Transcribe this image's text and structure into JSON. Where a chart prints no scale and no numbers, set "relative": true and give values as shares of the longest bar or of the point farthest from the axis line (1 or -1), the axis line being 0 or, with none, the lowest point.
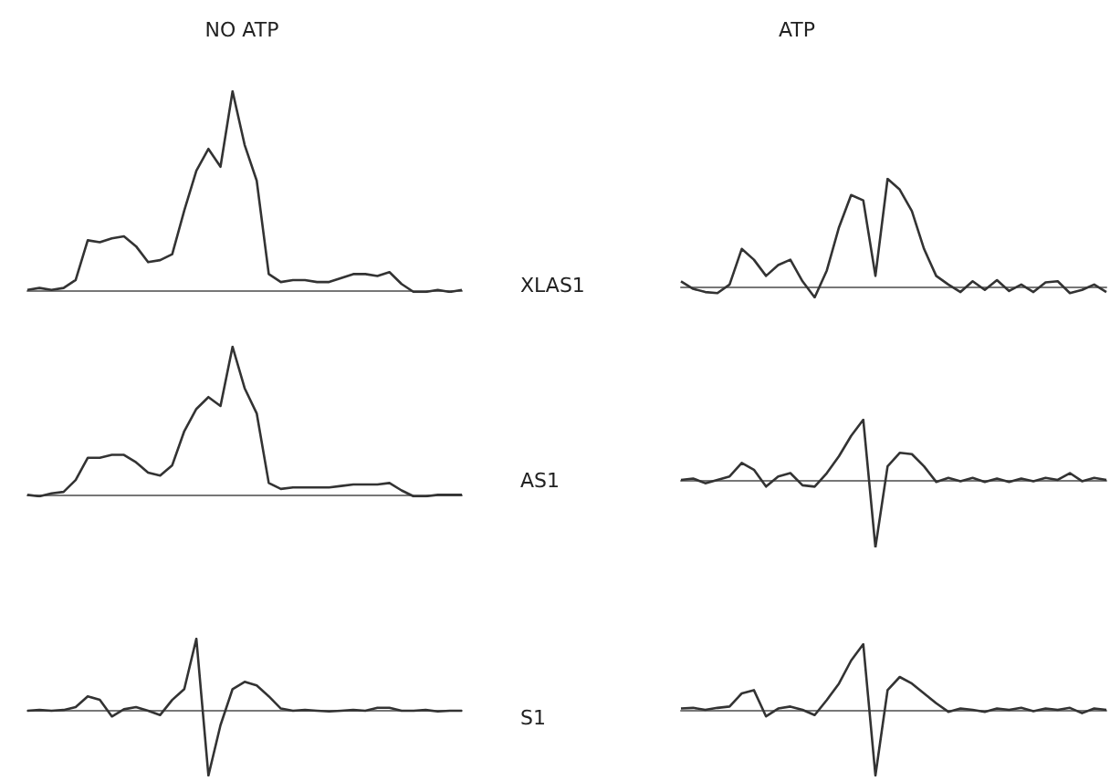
{
  "chart_data": [
    {
      "type": "line",
      "title": "NO ATP",
      "relative": true,
      "color": "#333333",
      "categories": [
        null,
        null,
        null,
        null,
        null,
        null,
        null,
        null,
        null,
        null,
        null,
        null,
        null,
        null,
        null,
        null,
        null,
        null,
        null,
        null,
        null,
        null,
        null,
        null,
        null,
        null,
        null,
        null,
        null,
        null,
        null,
        null,
        null,
        null,
        null,
        null,
        null
      ],
      "values": [
        0,
        0.01,
        0,
        0.01,
        0.05,
        0.25,
        0.24,
        0.26,
        0.27,
        0.22,
        0.14,
        0.15,
        0.18,
        0.4,
        0.6,
        0.71,
        0.62,
        1.0,
        0.73,
        0.55,
        0.08,
        0.04,
        0.05,
        0.05,
        0.04,
        0.04,
        0.06,
        0.08,
        0.08,
        0.07,
        0.09,
        0.03,
        -0.01,
        -0.01,
        0,
        -0.01,
        0
      ]
    },
    {
      "type": "line",
      "title": "ATP",
      "ylabel": "XLAS1",
      "relative": true,
      "color": "#333333",
      "categories": [
        null,
        null,
        null,
        null,
        null,
        null,
        null,
        null,
        null,
        null,
        null,
        null,
        null,
        null,
        null,
        null,
        null,
        null,
        null,
        null,
        null,
        null,
        null,
        null,
        null,
        null,
        null,
        null,
        null,
        null,
        null,
        null,
        null,
        null,
        null,
        null
      ],
      "values": [
        0.05,
        -0.02,
        -0.05,
        -0.06,
        0.02,
        0.35,
        0.25,
        0.1,
        0.2,
        0.25,
        0.05,
        -0.1,
        0.15,
        0.55,
        0.85,
        0.8,
        0.1,
        1.0,
        0.9,
        0.7,
        0.35,
        0.1,
        0.02,
        -0.05,
        0.05,
        -0.03,
        0.06,
        -0.04,
        0.02,
        -0.05,
        0.04,
        0.05,
        -0.06,
        -0.03,
        0.02,
        -0.05
      ]
    },
    {
      "type": "line",
      "relative": true,
      "color": "#333333",
      "categories": [
        null,
        null,
        null,
        null,
        null,
        null,
        null,
        null,
        null,
        null,
        null,
        null,
        null,
        null,
        null,
        null,
        null,
        null,
        null,
        null,
        null,
        null,
        null,
        null,
        null,
        null,
        null,
        null,
        null,
        null,
        null,
        null,
        null,
        null,
        null,
        null,
        null
      ],
      "values": [
        0,
        -0.01,
        0.01,
        0.02,
        0.1,
        0.25,
        0.25,
        0.27,
        0.27,
        0.22,
        0.15,
        0.13,
        0.2,
        0.43,
        0.58,
        0.66,
        0.6,
        1.0,
        0.72,
        0.55,
        0.08,
        0.04,
        0.05,
        0.05,
        0.05,
        0.05,
        0.06,
        0.07,
        0.07,
        0.07,
        0.08,
        0.03,
        -0.01,
        -0.01,
        0,
        0,
        0
      ]
    },
    {
      "type": "line",
      "ylabel": "AS1",
      "relative": true,
      "color": "#333333",
      "categories": [
        null,
        null,
        null,
        null,
        null,
        null,
        null,
        null,
        null,
        null,
        null,
        null,
        null,
        null,
        null,
        null,
        null,
        null,
        null,
        null,
        null,
        null,
        null,
        null,
        null,
        null,
        null,
        null,
        null,
        null,
        null,
        null,
        null,
        null,
        null,
        null
      ],
      "values": [
        0,
        0.02,
        -0.05,
        0,
        0.05,
        0.25,
        0.15,
        -0.1,
        0.05,
        0.1,
        -0.08,
        -0.1,
        0.1,
        0.35,
        0.65,
        0.89,
        -1.0,
        0.2,
        0.4,
        0.38,
        0.2,
        -0.03,
        0.03,
        -0.02,
        0.03,
        -0.03,
        0.02,
        -0.03,
        0.02,
        -0.02,
        0.03,
        0,
        0.1,
        -0.02,
        0.03,
        0
      ]
    },
    {
      "type": "line",
      "relative": true,
      "color": "#333333",
      "categories": [
        null,
        null,
        null,
        null,
        null,
        null,
        null,
        null,
        null,
        null,
        null,
        null,
        null,
        null,
        null,
        null,
        null,
        null,
        null,
        null,
        null,
        null,
        null,
        null,
        null,
        null,
        null,
        null,
        null,
        null,
        null,
        null,
        null,
        null,
        null,
        null,
        null
      ],
      "values": [
        0,
        0.01,
        0,
        0.01,
        0.05,
        0.2,
        0.15,
        -0.08,
        0.02,
        0.05,
        0,
        -0.06,
        0.15,
        0.3,
        1.0,
        -0.9,
        -0.2,
        0.3,
        0.4,
        0.35,
        0.2,
        0.03,
        0,
        0.01,
        0,
        -0.01,
        0,
        0.01,
        0,
        0.04,
        0.04,
        0,
        0,
        0.01,
        -0.01,
        0,
        0
      ]
    },
    {
      "type": "line",
      "ylabel": "S1",
      "relative": true,
      "color": "#333333",
      "categories": [
        null,
        null,
        null,
        null,
        null,
        null,
        null,
        null,
        null,
        null,
        null,
        null,
        null,
        null,
        null,
        null,
        null,
        null,
        null,
        null,
        null,
        null,
        null,
        null,
        null,
        null,
        null,
        null,
        null,
        null,
        null,
        null,
        null,
        null,
        null,
        null
      ],
      "values": [
        0.02,
        0.03,
        0,
        0.03,
        0.05,
        0.25,
        0.3,
        -0.1,
        0.02,
        0.05,
        0,
        -0.08,
        0.15,
        0.4,
        0.75,
        1.0,
        -1.0,
        0.3,
        0.5,
        0.4,
        0.25,
        0.1,
        -0.03,
        0.02,
        0,
        -0.03,
        0.02,
        0,
        0.03,
        -0.02,
        0.02,
        0,
        0.03,
        -0.05,
        0.02,
        0
      ]
    }
  ]
}
